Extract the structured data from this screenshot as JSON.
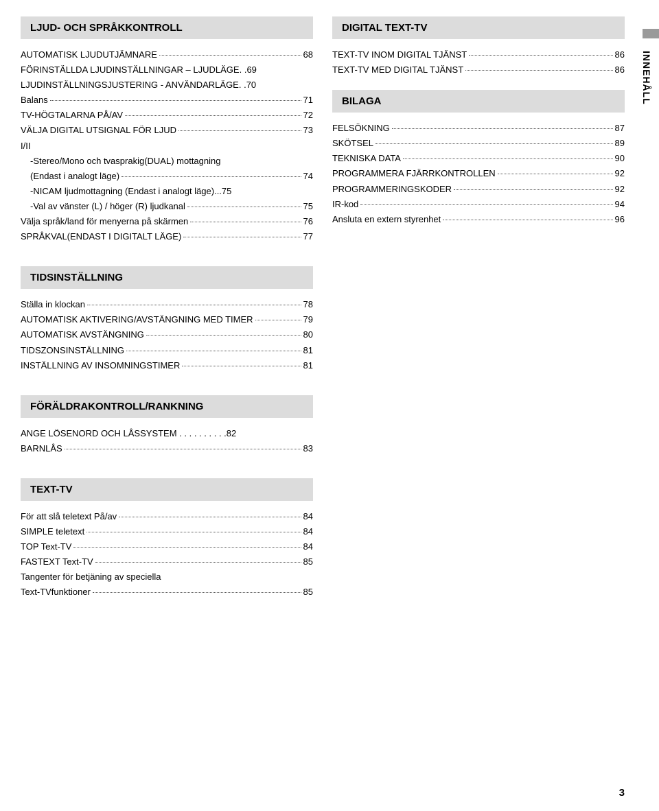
{
  "left": {
    "s1": {
      "title": "LJUD- OCH SPRÅKKONTROLL",
      "rows": [
        {
          "label": "AUTOMATISK LJUDUTJÄMNARE",
          "page": "68"
        },
        {
          "label": "FÖRINSTÄLLDA LJUDINSTÄLLNINGAR – LJUDLÄGE. .",
          "page": "69",
          "noleader": true
        },
        {
          "label": "LJUDINSTÄLLNINGSJUSTERING - ANVÄNDARLÄGE. .",
          "page": "70",
          "noleader": true
        },
        {
          "label": "Balans",
          "page": "71"
        },
        {
          "label": "TV-HÖGTALARNA PÅ/AV",
          "page": "72"
        },
        {
          "label": "VÄLJA DIGITAL UTSIGNAL FÖR LJUD",
          "page": "73"
        },
        {
          "label": "I/II",
          "plain": true
        },
        {
          "label": "-Stereo/Mono och tvasprakig(DUAL) mottagning",
          "plain": true,
          "indent": true
        },
        {
          "label": "(Endast i analogt läge)",
          "page": "74",
          "indent": true
        },
        {
          "label": "-NICAM ljudmottagning (Endast i analogt läge)...",
          "page": "75",
          "indent": true,
          "noleader": true
        },
        {
          "label": "-Val av vänster (L) / höger (R) ljudkanal",
          "page": "75",
          "indent": true
        },
        {
          "label": "Välja språk/land för menyerna på skärmen",
          "page": "76"
        },
        {
          "label": "SPRÅKVAL(ENDAST I DIGITALT LÄGE)",
          "page": "77"
        }
      ]
    },
    "s2": {
      "title": "TIDSINSTÄLLNING",
      "rows": [
        {
          "label": "Ställa in klockan",
          "page": "78"
        },
        {
          "label": "AUTOMATISK AKTIVERING/AVSTÄNGNING MED TIMER",
          "page": "79",
          "tight": true
        },
        {
          "label": "AUTOMATISK AVSTÄNGNING",
          "page": "80"
        },
        {
          "label": "TIDSZONSINSTÄLLNING",
          "page": "81"
        },
        {
          "label": "INSTÄLLNING AV INSOMNINGSTIMER",
          "page": "81"
        }
      ]
    },
    "s3": {
      "title": "FÖRÄLDRAKONTROLL/RANKNING",
      "rows": [
        {
          "label": "ANGE LÖSENORD OCH LÅSSYSTEM . . . . . . . . . .",
          "page": "82",
          "noleader": true
        },
        {
          "label": "BARNLÅS",
          "page": "83"
        }
      ]
    },
    "s4": {
      "title": "TEXT-TV",
      "rows": [
        {
          "label": "För att slå teletext På/av",
          "page": "84"
        },
        {
          "label": "SIMPLE teletext",
          "page": "84"
        },
        {
          "label": "TOP Text-TV",
          "page": "84"
        },
        {
          "label": "FASTEXT Text-TV",
          "page": "85"
        },
        {
          "label": "Tangenter för betjäning av speciella",
          "plain": true
        },
        {
          "label": "Text-TVfunktioner",
          "page": "85"
        }
      ]
    }
  },
  "right": {
    "s1": {
      "title": "DIGITAL TEXT-TV",
      "rows": [
        {
          "label": "TEXT-TV INOM DIGITAL TJÄNST",
          "page": "86"
        },
        {
          "label": "TEXT-TV MED DIGITAL TJÄNST",
          "page": "86"
        }
      ]
    },
    "s2": {
      "title": "BILAGA",
      "rows": [
        {
          "label": "FELSÖKNING",
          "page": "87"
        },
        {
          "label": "SKÖTSEL",
          "page": "89"
        },
        {
          "label": "TEKNISKA DATA",
          "page": "90"
        },
        {
          "label": "PROGRAMMERA FJÄRRKONTROLLEN",
          "page": "92"
        },
        {
          "label": "PROGRAMMERINGSKODER",
          "page": "92"
        },
        {
          "label": "IR-kod",
          "page": "94"
        },
        {
          "label": "Ansluta en extern styrenhet",
          "page": "96"
        }
      ]
    }
  },
  "sideTab": "INNEHÅLL",
  "pageNum": "3"
}
